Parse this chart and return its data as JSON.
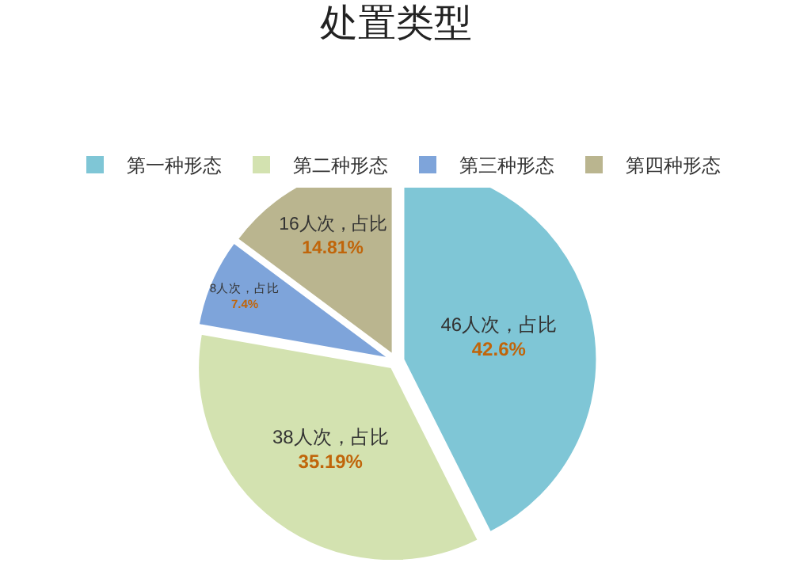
{
  "chart_data": {
    "type": "pie",
    "title": "处置类型",
    "categories": [
      "第一种形态",
      "第二种形态",
      "第三种形态",
      "第四种形态"
    ],
    "values": [
      46,
      38,
      8,
      16
    ],
    "colors": [
      "#7fc6d6",
      "#d3e2b0",
      "#7ea4da",
      "#bab58f"
    ],
    "value_labels": [
      "46人次，占比\n42.6%",
      "38人次，占比\n35.19%",
      "8人次，占比\n7.4%",
      "16人次，占比\n14.81%"
    ],
    "legend": "top"
  }
}
